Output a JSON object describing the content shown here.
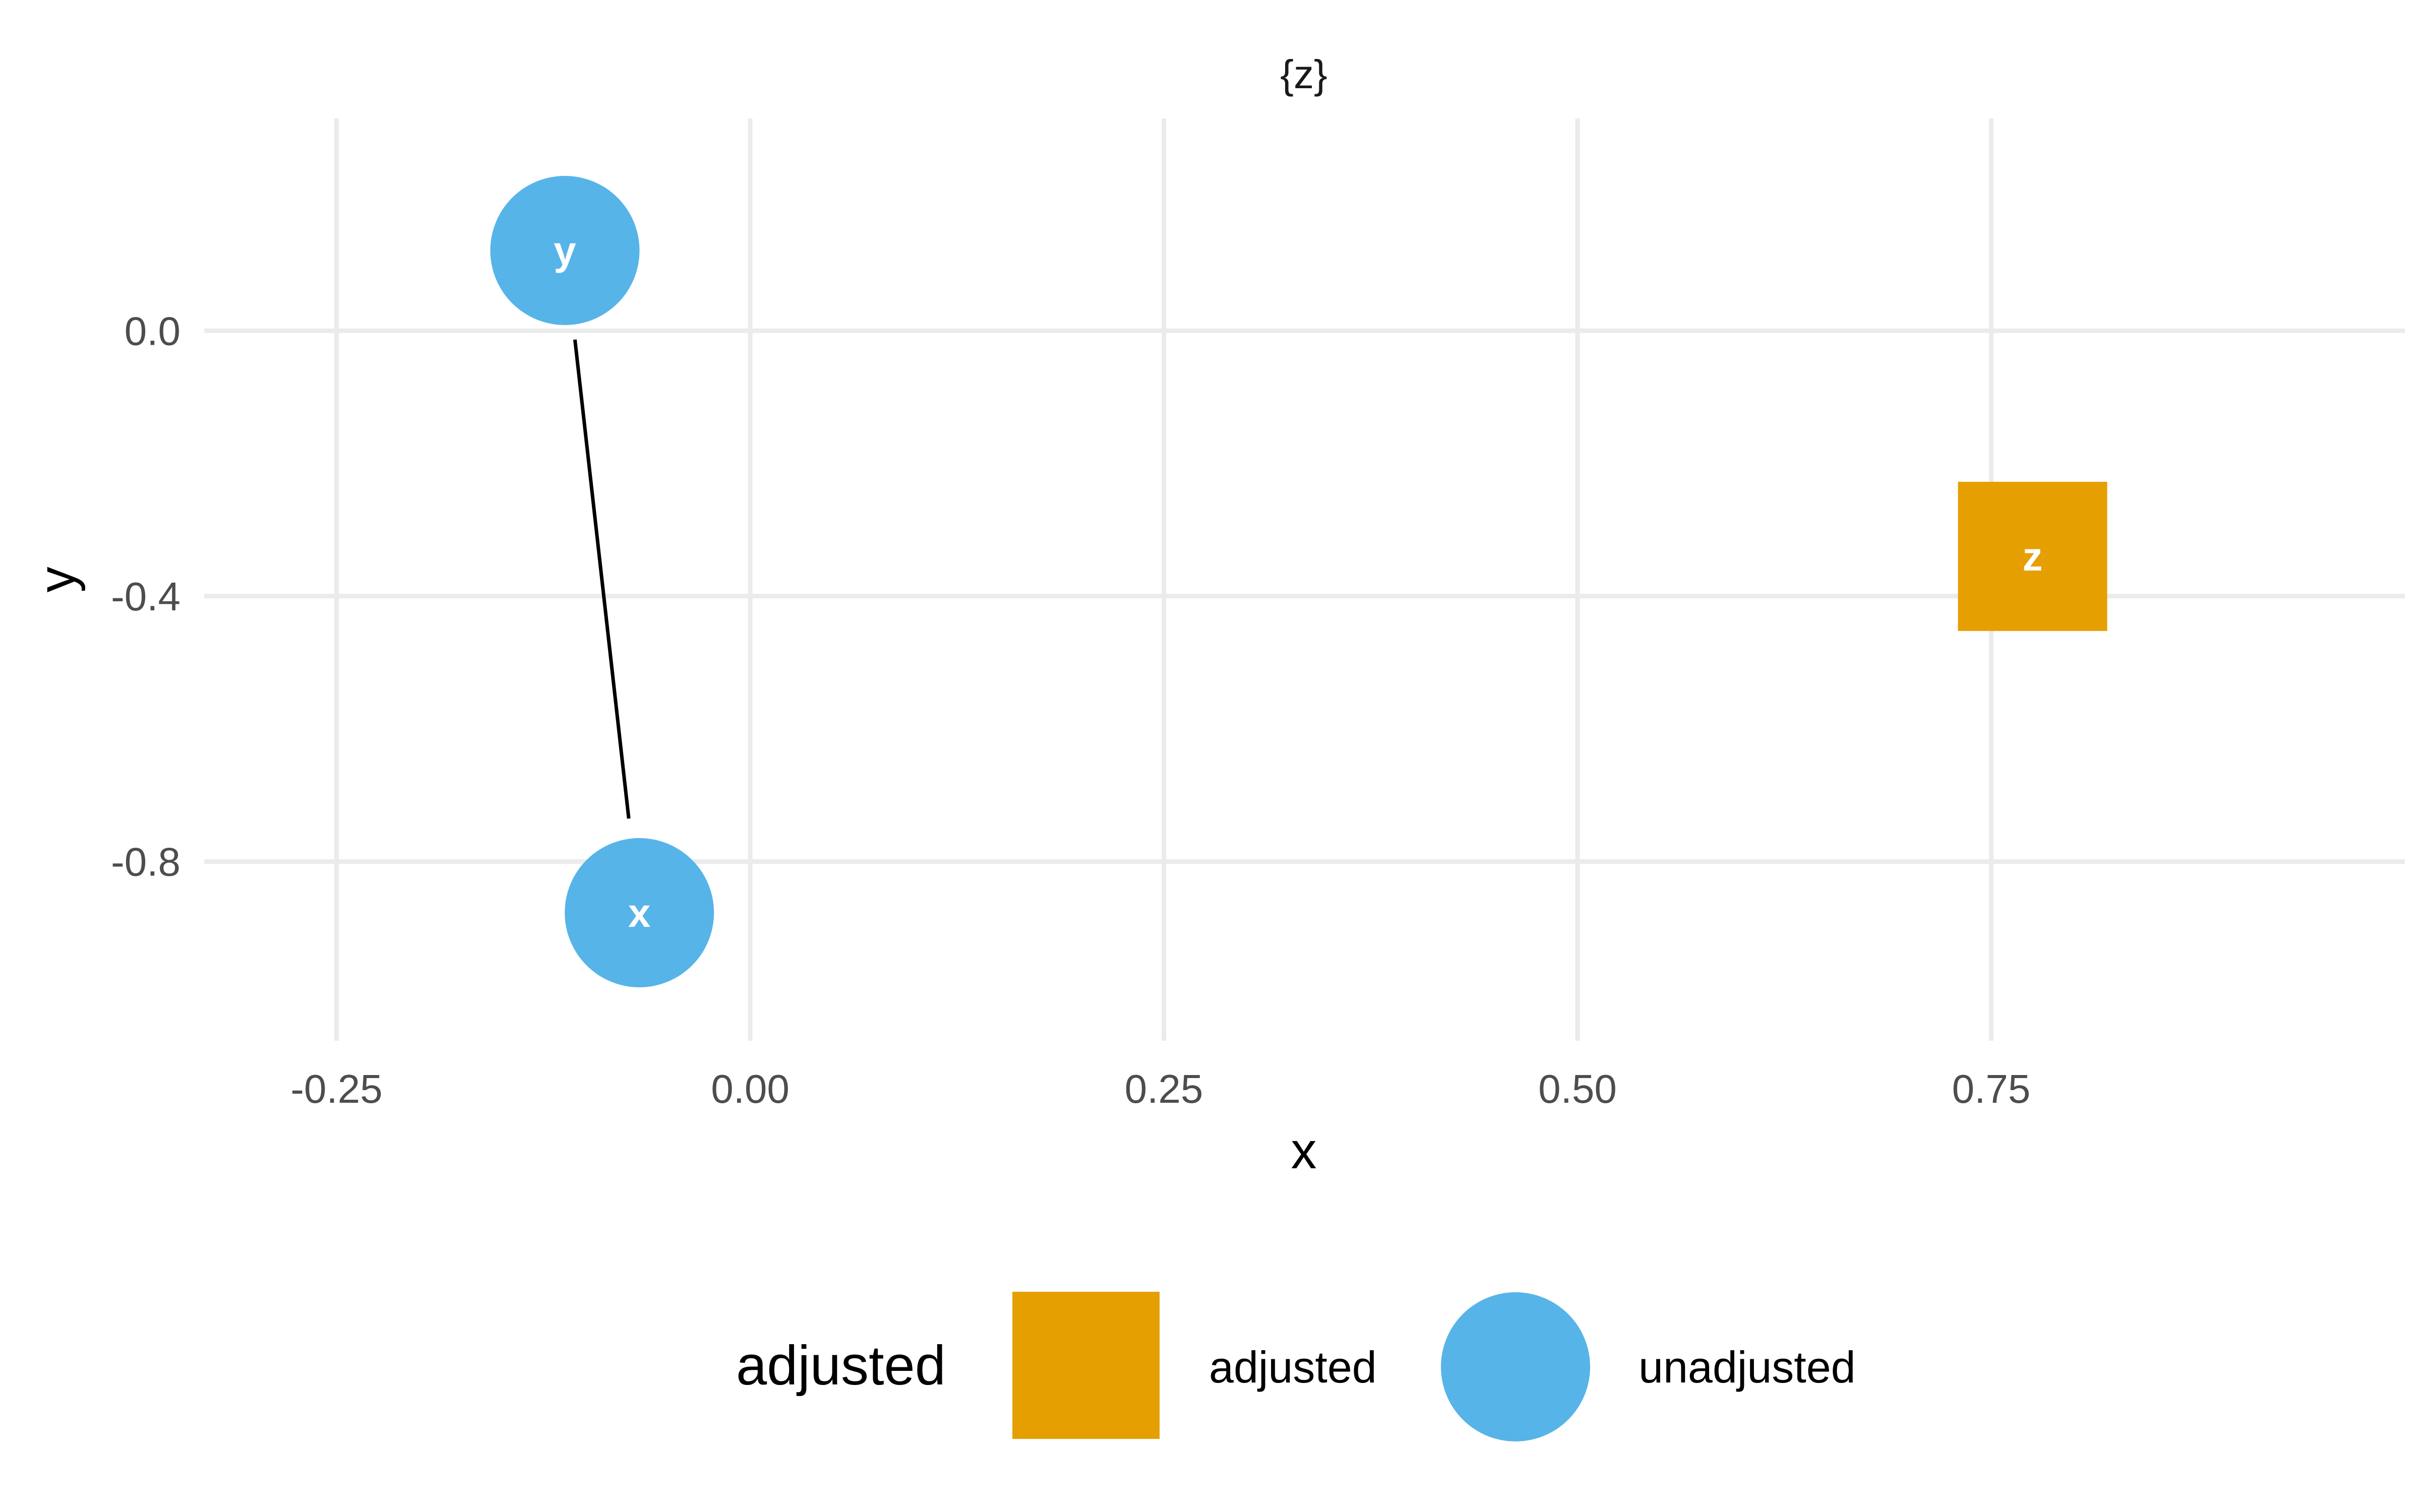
{
  "chart_data": {
    "type": "scatter",
    "title": "{z}",
    "xlabel": "x",
    "ylabel": "y",
    "xlim": [
      -0.33,
      1.0
    ],
    "ylim": [
      -1.07,
      0.32
    ],
    "grid": true,
    "x_ticks": [
      -0.25,
      0.0,
      0.25,
      0.5,
      0.75
    ],
    "x_tick_labels": [
      "-0.25",
      "0.00",
      "0.25",
      "0.50",
      "0.75"
    ],
    "y_ticks": [
      0.0,
      -0.4,
      -0.8
    ],
    "y_tick_labels": [
      "0.0",
      "-0.4",
      "-0.8"
    ],
    "nodes": [
      {
        "name": "y",
        "x": -0.112,
        "y": 0.121,
        "group": "unadjusted",
        "shape": "circle"
      },
      {
        "name": "x",
        "x": -0.067,
        "y": -0.877,
        "group": "unadjusted",
        "shape": "circle"
      },
      {
        "name": "z",
        "x": 0.775,
        "y": -0.34,
        "group": "adjusted",
        "shape": "square"
      }
    ],
    "edges": [
      {
        "from": "x",
        "to": "y"
      }
    ],
    "legend": {
      "title": "adjusted",
      "position": "bottom",
      "items": [
        {
          "label": "adjusted",
          "shape": "square",
          "color": "#E69F00"
        },
        {
          "label": "unadjusted",
          "shape": "circle",
          "color": "#56B4E9"
        }
      ]
    },
    "colors": {
      "adjusted": "#E69F00",
      "unadjusted": "#56B4E9"
    }
  }
}
